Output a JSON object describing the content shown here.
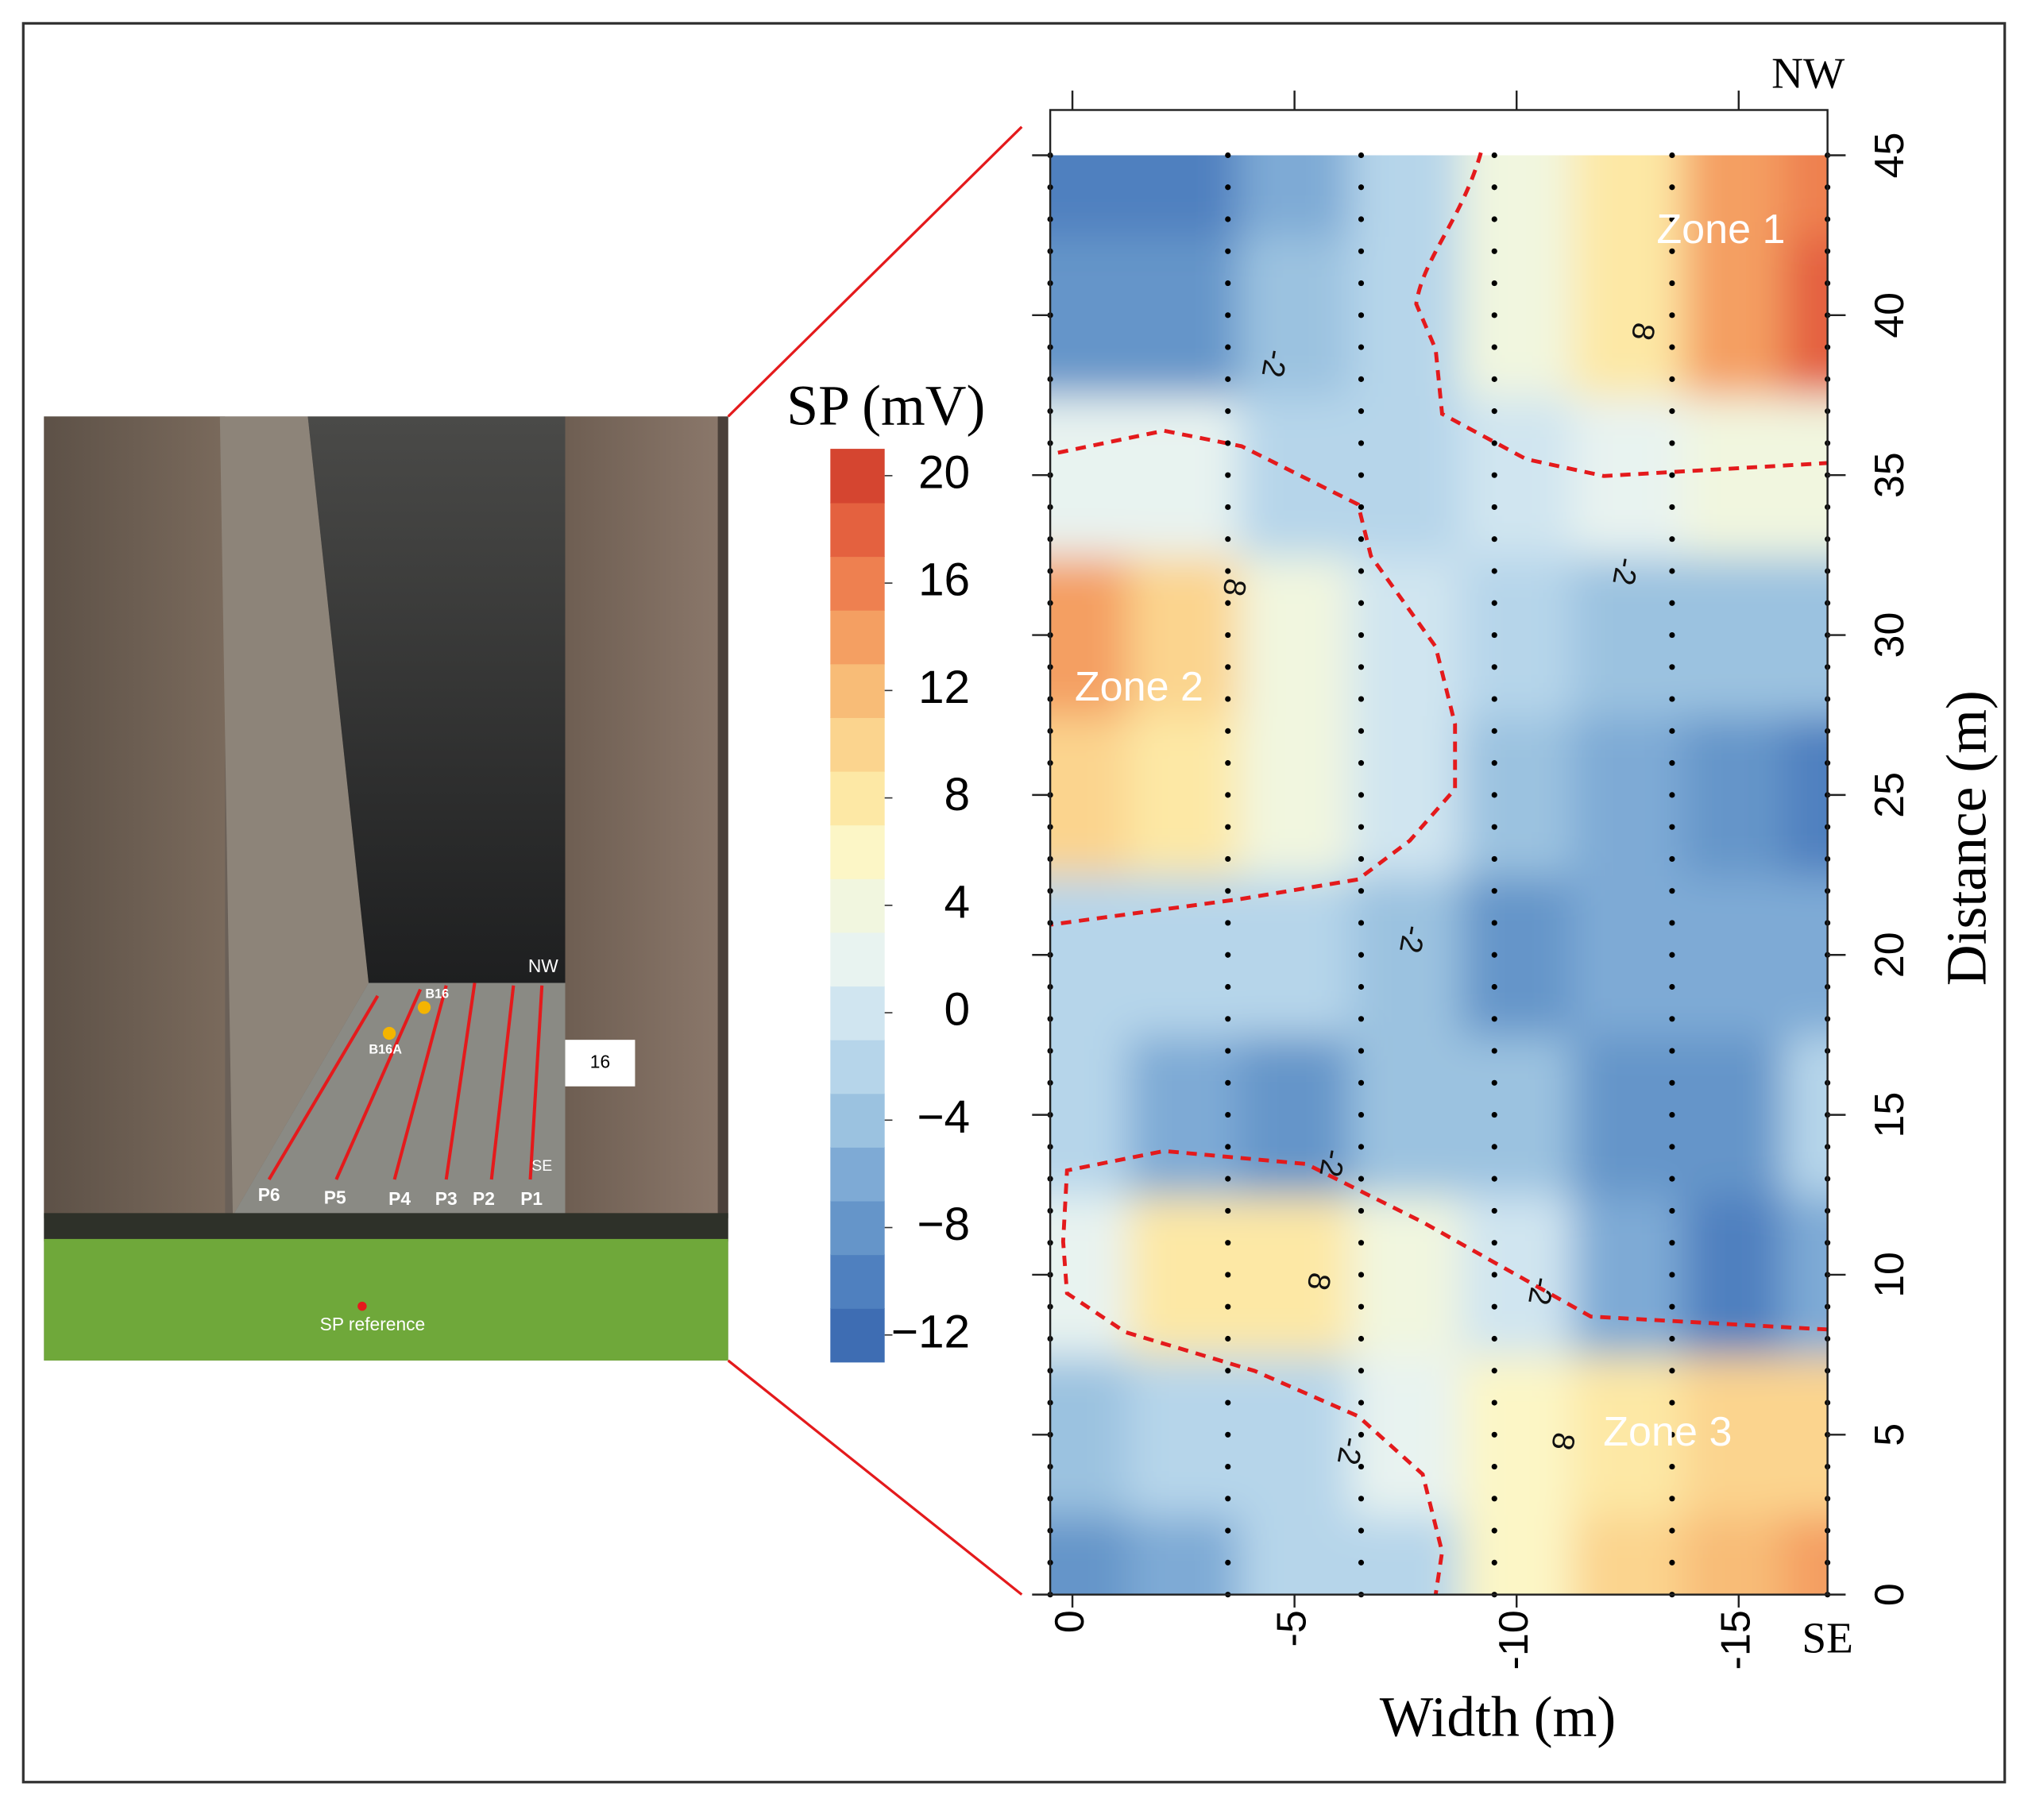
{
  "chart_data": {
    "type": "contour",
    "title": "SP (mV)",
    "x_label": "Width (m)",
    "y_label": "Distance (m)",
    "direction_top": "NW",
    "direction_bottom": "SE",
    "xlim": [
      0.5,
      -17
    ],
    "ylim": [
      0,
      45
    ],
    "xticks": [
      0,
      -5,
      -10,
      -15
    ],
    "yticks": [
      0,
      5,
      10,
      15,
      20,
      25,
      30,
      35,
      40,
      45
    ],
    "x": [
      0,
      -2.5,
      -5,
      -7.5,
      -10,
      -12.5,
      -15,
      -17
    ],
    "y": [
      0,
      5,
      10,
      15,
      20,
      25,
      30,
      35,
      40,
      45
    ],
    "z": [
      [
        -8,
        -6,
        -2,
        -2,
        6,
        10,
        12,
        14
      ],
      [
        -4,
        -2,
        -2,
        2,
        6,
        8,
        10,
        10
      ],
      [
        2,
        8,
        8,
        4,
        0,
        -6,
        -10,
        -6
      ],
      [
        -2,
        -6,
        -8,
        -4,
        -4,
        -8,
        -8,
        -2
      ],
      [
        -2,
        -2,
        -2,
        -4,
        -8,
        -6,
        -6,
        -6
      ],
      [
        10,
        8,
        4,
        0,
        -4,
        -6,
        -8,
        -10
      ],
      [
        14,
        10,
        4,
        0,
        -2,
        -4,
        -4,
        -4
      ],
      [
        2,
        2,
        -2,
        -2,
        0,
        2,
        4,
        4
      ],
      [
        -8,
        -8,
        -4,
        -2,
        4,
        8,
        14,
        18
      ],
      [
        -10,
        -10,
        -6,
        -2,
        4,
        8,
        14,
        16
      ]
    ],
    "levels": [
      -13,
      -11,
      -9,
      -7,
      -5,
      -3,
      -1,
      1,
      3,
      5,
      7,
      9,
      11,
      13,
      15,
      17,
      19,
      21
    ],
    "colors": [
      "#3e6db3",
      "#4f80bf",
      "#6595c9",
      "#7eaad5",
      "#9bc2e0",
      "#b6d5ea",
      "#d0e5f0",
      "#e8f3f0",
      "#f1f6df",
      "#fcf6c6",
      "#fde8a5",
      "#fbd48e",
      "#f8bc77",
      "#f49f62",
      "#ee8050",
      "#e4613f",
      "#d54530"
    ],
    "colorbar_ticks": [
      {
        "value": -12,
        "label": "−12"
      },
      {
        "value": -8,
        "label": "−8"
      },
      {
        "value": -4,
        "label": "−4"
      },
      0,
      4,
      8,
      12,
      16,
      20
    ],
    "profiles_x": [
      0.5,
      -3.5,
      -6.5,
      -9.5,
      -13.5,
      -17
    ],
    "zones": [
      {
        "text": "Zone 1",
        "x": -14.6,
        "y": 42.6
      },
      {
        "text": "Zone 2",
        "x": -1.5,
        "y": 28.3
      },
      {
        "text": "Zone 3",
        "x": -13.4,
        "y": 5.0
      }
    ],
    "contour_labels": [
      {
        "value": -2,
        "x": -4.5,
        "y": 38.5
      },
      {
        "value": 8,
        "x": -12.8,
        "y": 39.5
      },
      {
        "value": -2,
        "x": -12.4,
        "y": 32
      },
      {
        "value": 8,
        "x": -3.6,
        "y": 31.5
      },
      {
        "value": -2,
        "x": -7.6,
        "y": 20.5
      },
      {
        "value": -2,
        "x": -5.8,
        "y": 13.5
      },
      {
        "value": 8,
        "x": -5.5,
        "y": 9.8
      },
      {
        "value": -2,
        "x": -10.5,
        "y": 9.5
      },
      {
        "value": -2,
        "x": -6.2,
        "y": 4.5
      },
      {
        "value": 8,
        "x": -11,
        "y": 4.8
      }
    ]
  },
  "photo": {
    "direction_top": "NW",
    "direction_bottom": "SE",
    "profiles": [
      "P6",
      "P5",
      "P4",
      "P3",
      "P2",
      "P1"
    ],
    "boreholes": [
      "B16",
      "B16A"
    ],
    "pier_number": "16",
    "reference": "SP reference"
  }
}
